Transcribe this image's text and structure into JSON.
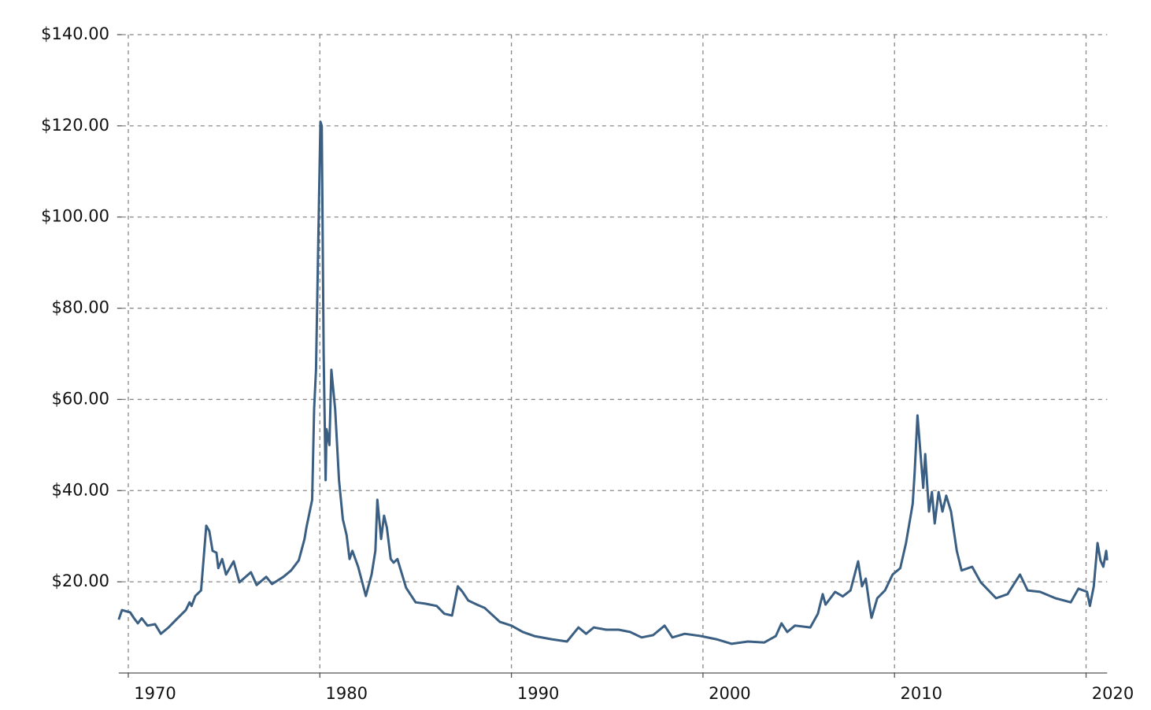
{
  "chart_data": {
    "type": "line",
    "x": [
      1969.5,
      1969.67,
      1970.1,
      1970.3,
      1970.5,
      1970.7,
      1971.0,
      1971.4,
      1971.7,
      1972.1,
      1972.5,
      1973.0,
      1973.2,
      1973.3,
      1973.5,
      1973.8,
      1974.07,
      1974.23,
      1974.4,
      1974.6,
      1974.7,
      1974.9,
      1975.1,
      1975.5,
      1975.8,
      1976.4,
      1976.7,
      1977.2,
      1977.5,
      1978.1,
      1978.5,
      1978.9,
      1979.2,
      1979.3,
      1979.6,
      1979.7,
      1979.8,
      1979.95,
      1980.03,
      1980.1,
      1980.2,
      1980.3,
      1980.35,
      1980.5,
      1980.6,
      1980.8,
      1981.0,
      1981.2,
      1981.4,
      1981.55,
      1981.7,
      1982.0,
      1982.4,
      1982.7,
      1982.9,
      1983.0,
      1983.2,
      1983.35,
      1983.5,
      1983.7,
      1983.85,
      1984.05,
      1984.5,
      1985.0,
      1985.5,
      1986.1,
      1986.5,
      1986.9,
      1987.2,
      1987.45,
      1987.75,
      1988.2,
      1988.6,
      1989.4,
      1990.0,
      1990.6,
      1991.2,
      1992.1,
      1992.9,
      1993.5,
      1993.9,
      1994.3,
      1994.95,
      1995.6,
      1996.2,
      1996.8,
      1997.4,
      1998.0,
      1998.4,
      1999.05,
      1999.9,
      2000.7,
      2001.5,
      2002.35,
      2003.2,
      2003.8,
      2004.1,
      2004.4,
      2004.8,
      2005.6,
      2006.0,
      2006.25,
      2006.4,
      2006.9,
      2007.3,
      2007.7,
      2008.1,
      2008.3,
      2008.5,
      2008.7,
      2008.8,
      2009.1,
      2009.5,
      2009.9,
      2010.3,
      2010.6,
      2010.95,
      2011.05,
      2011.2,
      2011.35,
      2011.5,
      2011.6,
      2011.8,
      2011.95,
      2012.1,
      2012.3,
      2012.5,
      2012.7,
      2012.95,
      2013.25,
      2013.5,
      2014.05,
      2014.5,
      2015.3,
      2015.9,
      2016.55,
      2016.95,
      2017.6,
      2018.4,
      2019.2,
      2019.6,
      2020.05,
      2020.2,
      2020.4,
      2020.6,
      2020.75,
      2020.9,
      2021.05,
      2021.1
    ],
    "series": [
      {
        "color": "#3a5f82",
        "values": [
          11.7,
          13.8,
          13.3,
          12,
          10.9,
          12,
          10.4,
          10.7,
          8.6,
          10,
          11.7,
          13.8,
          15.5,
          14.7,
          16.9,
          18.1,
          32.3,
          31.1,
          26.8,
          26.4,
          23,
          25,
          21.6,
          24.5,
          19.9,
          22.1,
          19.3,
          21.1,
          19.5,
          21.1,
          22.5,
          24.7,
          29.4,
          31.9,
          38,
          57.9,
          66.5,
          102.8,
          120.9,
          120,
          70,
          42.3,
          53.5,
          50,
          66.5,
          57.9,
          42.3,
          33.7,
          30.2,
          25,
          26.8,
          23.3,
          16.9,
          21.6,
          26.8,
          38,
          29.4,
          34.5,
          31.9,
          25,
          24.2,
          25,
          18.7,
          15.5,
          15.2,
          14.7,
          13,
          12.6,
          19,
          17.8,
          15.9,
          15,
          14.3,
          11.2,
          10.4,
          9,
          8.1,
          7.4,
          6.9,
          10,
          8.6,
          10,
          9.5,
          9.5,
          9,
          7.8,
          8.3,
          10.4,
          7.8,
          8.6,
          8.1,
          7.4,
          6.4,
          6.9,
          6.7,
          8.1,
          10.9,
          9,
          10.4,
          10,
          13,
          17.3,
          15,
          17.8,
          16.8,
          18.1,
          24.5,
          19,
          20.7,
          14.7,
          12.1,
          16.4,
          18.1,
          21.6,
          23,
          28.5,
          37.1,
          44,
          56.5,
          48.4,
          40.6,
          48,
          35.4,
          39.7,
          32.8,
          39.7,
          35.4,
          38.9,
          35.4,
          26.8,
          22.5,
          23.3,
          19.9,
          16.4,
          17.3,
          21.6,
          18.1,
          17.8,
          16.4,
          15.5,
          18.5,
          17.8,
          14.7,
          19,
          28.5,
          24.7,
          23.3,
          26.8,
          24.7
        ]
      }
    ],
    "xlim": [
      1969.5,
      2021.1
    ],
    "xticks": [
      1970,
      1980,
      1990,
      2000,
      2010,
      2020
    ],
    "ylim": [
      0,
      140
    ],
    "yticks": [
      {
        "value": 20,
        "label": "$20.00"
      },
      {
        "value": 40,
        "label": "$40.00"
      },
      {
        "value": 60,
        "label": "$60.00"
      },
      {
        "value": 80,
        "label": "$80.00"
      },
      {
        "value": 100,
        "label": "$100.00"
      },
      {
        "value": 120,
        "label": "$120.00"
      },
      {
        "value": 140,
        "label": "$140.00"
      }
    ],
    "grid": true
  }
}
